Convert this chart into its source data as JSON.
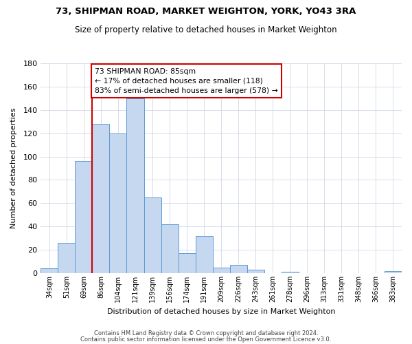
{
  "title": "73, SHIPMAN ROAD, MARKET WEIGHTON, YORK, YO43 3RA",
  "subtitle": "Size of property relative to detached houses in Market Weighton",
  "xlabel": "Distribution of detached houses by size in Market Weighton",
  "ylabel": "Number of detached properties",
  "bar_labels": [
    "34sqm",
    "51sqm",
    "69sqm",
    "86sqm",
    "104sqm",
    "121sqm",
    "139sqm",
    "156sqm",
    "174sqm",
    "191sqm",
    "209sqm",
    "226sqm",
    "243sqm",
    "261sqm",
    "278sqm",
    "296sqm",
    "313sqm",
    "331sqm",
    "348sqm",
    "366sqm",
    "383sqm"
  ],
  "bar_values": [
    4,
    26,
    96,
    128,
    120,
    150,
    65,
    42,
    17,
    32,
    5,
    7,
    3,
    0,
    1,
    0,
    0,
    0,
    0,
    0,
    2
  ],
  "bar_color": "#c5d8f0",
  "bar_edge_color": "#5b9bd5",
  "vline_color": "#cc0000",
  "vline_index": 2.5,
  "annotation_text": "73 SHIPMAN ROAD: 85sqm\n← 17% of detached houses are smaller (118)\n83% of semi-detached houses are larger (578) →",
  "annotation_box_color": "#ffffff",
  "annotation_box_edge": "#cc0000",
  "ylim": [
    0,
    180
  ],
  "yticks": [
    0,
    20,
    40,
    60,
    80,
    100,
    120,
    140,
    160,
    180
  ],
  "footer_line1": "Contains HM Land Registry data © Crown copyright and database right 2024.",
  "footer_line2": "Contains public sector information licensed under the Open Government Licence v3.0.",
  "background_color": "#ffffff",
  "grid_color": "#d0d8e4"
}
